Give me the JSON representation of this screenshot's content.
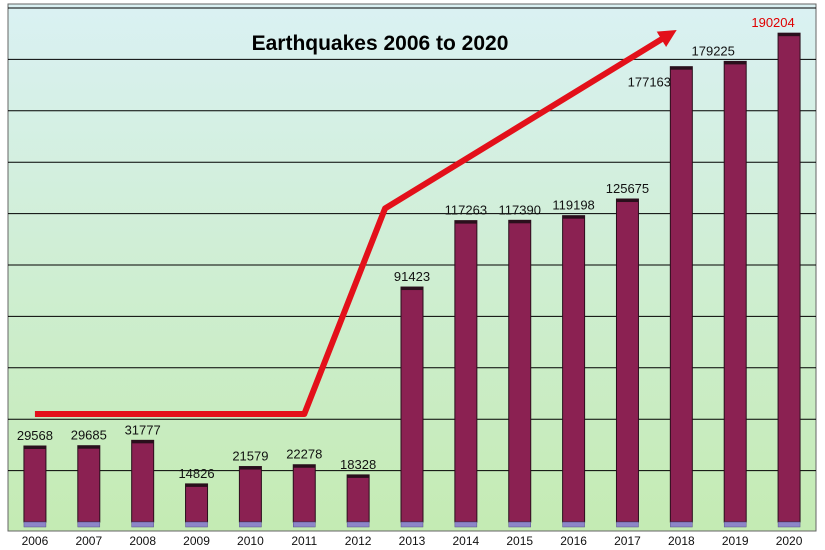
{
  "chart_data": {
    "type": "bar",
    "title": "Earthquakes 2006 to 2020",
    "xlabel": "",
    "ylabel": "",
    "ylim": [
      0,
      200000
    ],
    "grid": true,
    "categories": [
      "2006",
      "2007",
      "2008",
      "2009",
      "2010",
      "2011",
      "2012",
      "2013",
      "2014",
      "2015",
      "2016",
      "2017",
      "2018",
      "2019",
      "2020"
    ],
    "values": [
      29568,
      29685,
      31777,
      14826,
      21579,
      22278,
      18328,
      91423,
      117263,
      117390,
      119198,
      125675,
      177163,
      179225,
      190204
    ],
    "value_labels": [
      "29568",
      "29685",
      "31777",
      "14826",
      "21579",
      "22278",
      "18328",
      "91423",
      "117263",
      "117390",
      "119198",
      "125675",
      "177163",
      "179225",
      "190204"
    ],
    "highlight_index": 14,
    "trend_annotation": {
      "description": "red arrow showing increasing trend",
      "points": [
        {
          "x": 2006,
          "y": 42000
        },
        {
          "x": 2011,
          "y": 42000
        },
        {
          "x": 2012.5,
          "y": 122000
        },
        {
          "x": 2017.8,
          "y": 190000
        }
      ]
    },
    "colors": {
      "bar": "#8b2152",
      "bar_dark": "#2a0f1c",
      "bar_base": "#8d86c8",
      "grid": "#000000",
      "arrow": "#e3101a",
      "highlight_label": "#e00000",
      "background_top": "#daf1f3",
      "background_bottom": "#c4ebb3"
    }
  }
}
